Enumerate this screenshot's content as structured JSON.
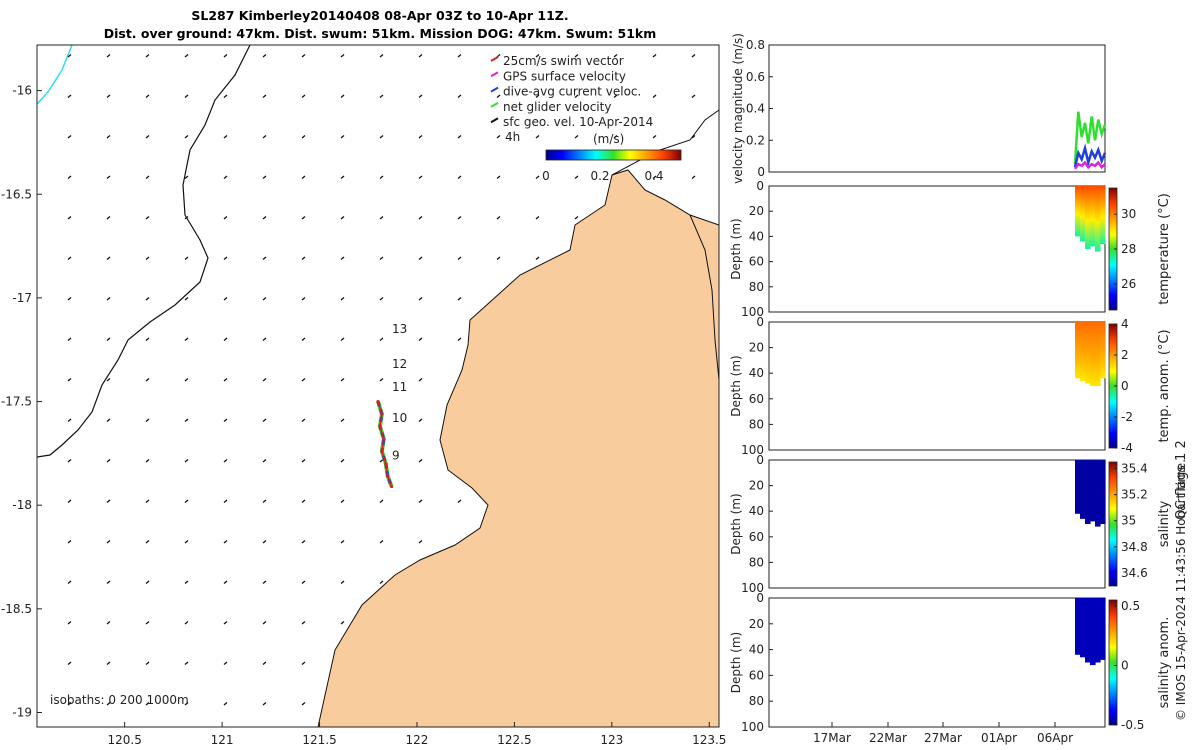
{
  "title": {
    "line1": "SL287 Kimberley20140408 08-Apr 03Z to 10-Apr 11Z.",
    "line2": "Dist. over ground: 47km. Dist. swum: 51km. Mission DOG: 47km. Swum: 51km"
  },
  "colors": {
    "land": "#f9cc9d",
    "coast": "#111111",
    "track_red": "#d91f1f",
    "track_blue": "#1f3fd9",
    "glider_green": "#2ee02e",
    "gps_magenta": "#e020e0",
    "isobath_cyan": "#33dded"
  },
  "chart_data": [
    {
      "type": "map",
      "name": "glider-track-map",
      "xlabel": "",
      "ylabel": "",
      "xlim": [
        120.05,
        123.55
      ],
      "ylim": [
        -19.07,
        -15.78
      ],
      "xticks": [
        "120.5",
        "121",
        "121.5",
        "122",
        "122.5",
        "123",
        "123.5"
      ],
      "xtick_values": [
        120.5,
        121,
        121.5,
        122,
        122.5,
        123,
        123.5
      ],
      "yticks": [
        "-16",
        "-16.5",
        "-17",
        "-17.5",
        "-18",
        "-18.5",
        "-19"
      ],
      "ytick_values": [
        -16,
        -16.5,
        -17,
        -17.5,
        -18,
        -18.5,
        -19
      ],
      "legend": [
        {
          "label": "25cm/s swim vector",
          "color": "#d91f1f"
        },
        {
          "label": "GPS surface velocity",
          "color": "#e020e0"
        },
        {
          "label": "dive-avg current veloc.",
          "color": "#1f3fd9"
        },
        {
          "label": "net glider velocity",
          "color": "#2ee02e"
        },
        {
          "label": "sfc geo. vel. 10-Apr-2014",
          "color": "#111111"
        }
      ],
      "legend_position": "top-right",
      "scale_label": "4h",
      "colorbar": {
        "label": "(m/s)",
        "ticks": [
          "0",
          "0.2",
          "0.4"
        ],
        "tick_values": [
          0,
          0.2,
          0.4
        ],
        "range": [
          0,
          0.5
        ]
      },
      "isobaths_label": "isobaths: 0   200  1000m",
      "day_labels": [
        {
          "text": "13",
          "lat": -17.15
        },
        {
          "text": "12",
          "lat": -17.32
        },
        {
          "text": "11",
          "lat": -17.43
        },
        {
          "text": "10",
          "lat": -17.58
        },
        {
          "text": "9",
          "lat": -17.76
        }
      ],
      "track": [
        {
          "lon": 121.8,
          "lat": -17.5
        },
        {
          "lon": 121.82,
          "lat": -17.56
        },
        {
          "lon": 121.81,
          "lat": -17.62
        },
        {
          "lon": 121.83,
          "lat": -17.68
        },
        {
          "lon": 121.82,
          "lat": -17.74
        },
        {
          "lon": 121.84,
          "lat": -17.8
        },
        {
          "lon": 121.85,
          "lat": -17.86
        },
        {
          "lon": 121.87,
          "lat": -17.91
        }
      ]
    },
    {
      "type": "line",
      "name": "velocity-magnitude",
      "ylabel": "velocity magnitude (m/s)",
      "ylim": [
        0,
        0.8
      ],
      "yticks": [
        "0",
        "0.2",
        "0.4",
        "0.6",
        "0.8"
      ],
      "ytick_values": [
        0,
        0.2,
        0.4,
        0.6,
        0.8
      ],
      "series": [
        {
          "name": "net glider velocity",
          "color": "#2ee02e",
          "values": [
            0.05,
            0.38,
            0.22,
            0.31,
            0.18,
            0.35,
            0.2,
            0.33,
            0.24,
            0.3
          ]
        },
        {
          "name": "dive-avg current veloc.",
          "color": "#1f3fd9",
          "values": [
            0.03,
            0.12,
            0.08,
            0.15,
            0.06,
            0.13,
            0.09,
            0.14,
            0.07,
            0.12
          ]
        },
        {
          "name": "GPS surface velocity",
          "color": "#e020e0",
          "values": [
            0.02,
            0.05,
            0.04,
            0.06,
            0.03,
            0.05,
            0.04,
            0.06,
            0.03,
            0.05
          ]
        }
      ]
    },
    {
      "type": "heatmap",
      "name": "temperature",
      "ylabel": "Depth (m)",
      "colorbar_label": "temperature (°C)",
      "yticks": [
        "0",
        "20",
        "40",
        "60",
        "80",
        "100"
      ],
      "cb_ticks": [
        "30",
        "28",
        "26"
      ],
      "cb_tick_values": [
        30,
        28,
        26
      ],
      "cb_range": [
        24.5,
        31.5
      ],
      "shallow_value": 30.5,
      "deep_value": 27.5,
      "max_depth": [
        40,
        44,
        50,
        48,
        52,
        46
      ]
    },
    {
      "type": "heatmap",
      "name": "temp-anomaly",
      "ylabel": "Depth (m)",
      "colorbar_label": "temp. anom. (°C)",
      "yticks": [
        "0",
        "20",
        "40",
        "60",
        "80",
        "100"
      ],
      "cb_ticks": [
        "4",
        "2",
        "0",
        "-2",
        "-4"
      ],
      "cb_tick_values": [
        4,
        2,
        0,
        -2,
        -4
      ],
      "cb_range": [
        -4,
        4
      ],
      "shallow_value": 2.5,
      "deep_value": 1.2,
      "max_depth": [
        44,
        46,
        48,
        50,
        50,
        44
      ]
    },
    {
      "type": "heatmap",
      "name": "salinity",
      "ylabel": "Depth (m)",
      "colorbar_label": "salinity",
      "yticks": [
        "0",
        "20",
        "40",
        "60",
        "80",
        "100"
      ],
      "cb_ticks": [
        "35.4",
        "35.2",
        "35",
        "34.8",
        "34.6"
      ],
      "cb_tick_values": [
        35.4,
        35.2,
        35,
        34.8,
        34.6
      ],
      "cb_range": [
        34.5,
        35.45
      ],
      "shallow_value": 34.52,
      "deep_value": 34.52,
      "max_depth": [
        42,
        46,
        50,
        48,
        52,
        50
      ]
    },
    {
      "type": "heatmap",
      "name": "salinity-anomaly",
      "ylabel": "Depth (m)",
      "colorbar_label": "salinity anom.",
      "yticks": [
        "0",
        "20",
        "40",
        "60",
        "80",
        "100"
      ],
      "cb_ticks": [
        "0.5",
        "0",
        "-0.5"
      ],
      "cb_tick_values": [
        0.5,
        0,
        -0.5
      ],
      "cb_range": [
        -0.5,
        0.55
      ],
      "shallow_value": -0.45,
      "deep_value": -0.45,
      "max_depth": [
        44,
        46,
        50,
        52,
        50,
        48
      ]
    }
  ],
  "time_axis": {
    "labels": [
      "17Mar",
      "22Mar",
      "27Mar",
      "01Apr",
      "06Apr"
    ]
  },
  "flags_label": "QC flags 1  2",
  "footer": "© IMOS 15-Apr-2024 11:43:56 Hobart time."
}
